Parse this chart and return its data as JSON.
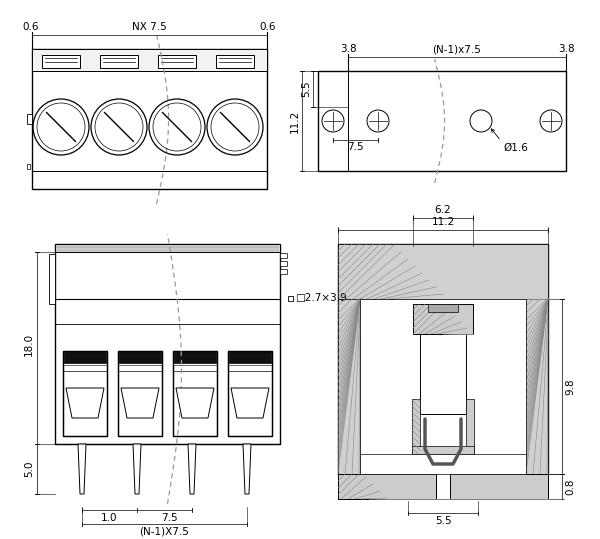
{
  "bg_color": "#ffffff",
  "line_color": "#000000",
  "font_size": 7.5,
  "annotations": {
    "top_left_dim1": "0.6",
    "top_left_label": "NX 7.5",
    "top_left_dim2": "0.6",
    "top_right_dim1": "3.8",
    "top_right_label": "(N-1)x7.5",
    "top_right_dim2": "3.8",
    "top_right_inner": "7.5",
    "top_right_h1": "5.5",
    "top_right_h2": "11.2",
    "top_right_dia": "Ø1.6",
    "bot_left_h1": "18.0",
    "bot_left_h2": "5.0",
    "bot_left_dim1": "1.0",
    "bot_left_dim2": "7.5",
    "bot_left_label": "(N-1)X7.5",
    "bot_left_ann": "□2.7×3.9",
    "bot_right_w1": "11.2",
    "bot_right_w2": "6.2",
    "bot_right_h1": "9.8",
    "bot_right_h2": "0.8",
    "bot_right_w3": "5.5"
  }
}
